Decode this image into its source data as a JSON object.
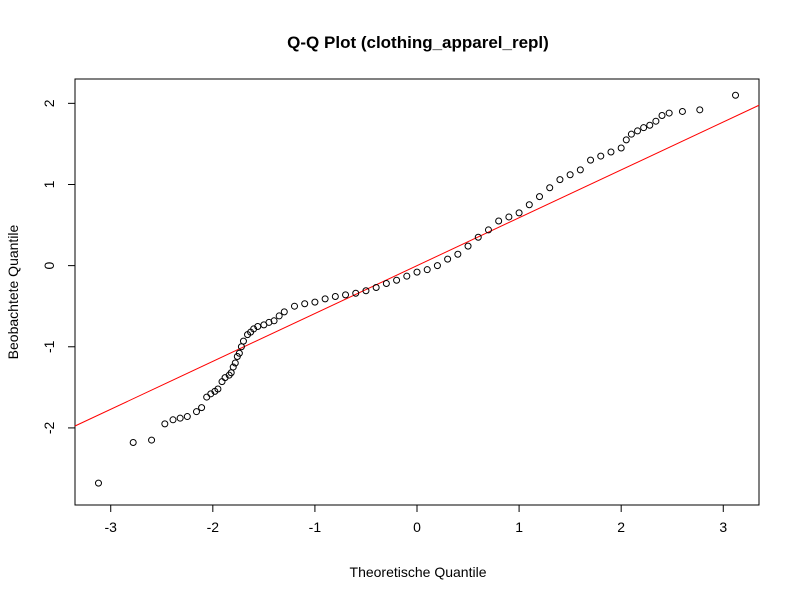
{
  "chart_data": {
    "type": "scatter",
    "title": "Q-Q Plot (clothing_apparel_repl)",
    "xlabel": "Theoretische Quantile",
    "ylabel": "Beobachtete Quantile",
    "xlim": [
      -3.35,
      3.35
    ],
    "ylim": [
      -2.95,
      2.3
    ],
    "xticks": [
      -3,
      -2,
      -1,
      0,
      1,
      2,
      3
    ],
    "yticks": [
      -2,
      -1,
      0,
      1,
      2
    ],
    "grid": false,
    "legend": "none",
    "point_style": "open circle",
    "point_color": "#000000",
    "reference_line": {
      "intercept": 0.0,
      "slope": 0.59,
      "color": "#ff0000"
    },
    "series": [
      {
        "x": [
          -3.12,
          -2.78,
          -2.6,
          -2.47,
          -2.39,
          -2.32,
          -2.25,
          -2.16,
          -2.11,
          -2.06,
          -2.02,
          -1.98,
          -1.95,
          -1.91,
          -1.88,
          -1.84,
          -1.82,
          -1.8,
          -1.78,
          -1.76,
          -1.74,
          -1.72,
          -1.7,
          -1.66,
          -1.63,
          -1.6,
          -1.56,
          -1.5,
          -1.45,
          -1.4,
          -1.35,
          -1.3,
          -1.2,
          -1.1,
          -1.0,
          -0.9,
          -0.8,
          -0.7,
          -0.6,
          -0.5,
          -0.4,
          -0.3,
          -0.2,
          -0.1,
          0.0,
          0.1,
          0.2,
          0.3,
          0.4,
          0.5,
          0.6,
          0.7,
          0.8,
          0.9,
          1.0,
          1.1,
          1.2,
          1.3,
          1.4,
          1.5,
          1.6,
          1.7,
          1.8,
          1.9,
          2.0,
          2.05,
          2.1,
          2.16,
          2.22,
          2.28,
          2.34,
          2.4,
          2.47,
          2.6,
          2.77,
          3.12
        ],
        "y": [
          -2.68,
          -2.18,
          -2.15,
          -1.95,
          -1.9,
          -1.88,
          -1.86,
          -1.8,
          -1.75,
          -1.62,
          -1.58,
          -1.55,
          -1.52,
          -1.43,
          -1.38,
          -1.35,
          -1.32,
          -1.25,
          -1.2,
          -1.12,
          -1.08,
          -1.0,
          -0.93,
          -0.85,
          -0.82,
          -0.78,
          -0.75,
          -0.73,
          -0.7,
          -0.68,
          -0.62,
          -0.57,
          -0.5,
          -0.47,
          -0.45,
          -0.41,
          -0.38,
          -0.36,
          -0.34,
          -0.31,
          -0.27,
          -0.22,
          -0.18,
          -0.13,
          -0.08,
          -0.05,
          0.0,
          0.08,
          0.14,
          0.24,
          0.35,
          0.44,
          0.55,
          0.6,
          0.65,
          0.75,
          0.85,
          0.96,
          1.06,
          1.12,
          1.18,
          1.3,
          1.35,
          1.4,
          1.45,
          1.55,
          1.62,
          1.66,
          1.7,
          1.73,
          1.78,
          1.85,
          1.88,
          1.9,
          1.92,
          2.1
        ]
      }
    ]
  }
}
